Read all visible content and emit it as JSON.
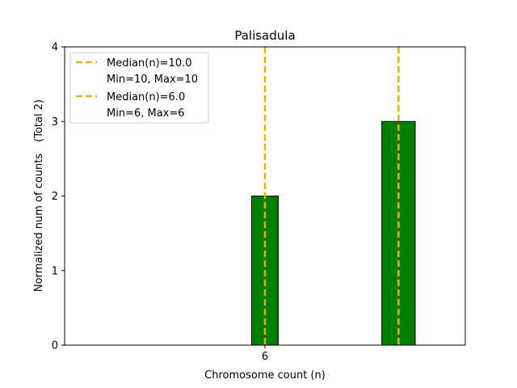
{
  "chart_data": {
    "type": "bar",
    "title": "Palisadula",
    "xlabel": "Chromosome count (n)",
    "ylabel": "Normalized num of counts",
    "ylabel_total": "(Total 2)",
    "xlim": [
      3,
      15
    ],
    "ylim": [
      0,
      4
    ],
    "yticks": [
      0,
      1,
      2,
      3,
      4
    ],
    "xticks": [
      {
        "value": 9,
        "label": "6"
      }
    ],
    "bars": [
      {
        "x": 9,
        "value": 2,
        "width": 0.8
      },
      {
        "x": 13,
        "value": 3,
        "width": 1.0
      }
    ],
    "medians": [
      {
        "x": 9,
        "label": "Median(n)=6.0",
        "range": "Min=6, Max=6"
      },
      {
        "x": 13,
        "label": "Median(n)=10.0",
        "range": "Min=10, Max=10"
      }
    ],
    "legend": {
      "placement": "top-left",
      "entries": [
        {
          "label": "Median(n)=10.0",
          "sub": "Min=10, Max=10"
        },
        {
          "label": "Median(n)=6.0",
          "sub": "Min=6, Max=6"
        }
      ]
    },
    "colors": {
      "bar": "#008000",
      "bar_edge": "#000000",
      "median": "#f0b000"
    }
  }
}
